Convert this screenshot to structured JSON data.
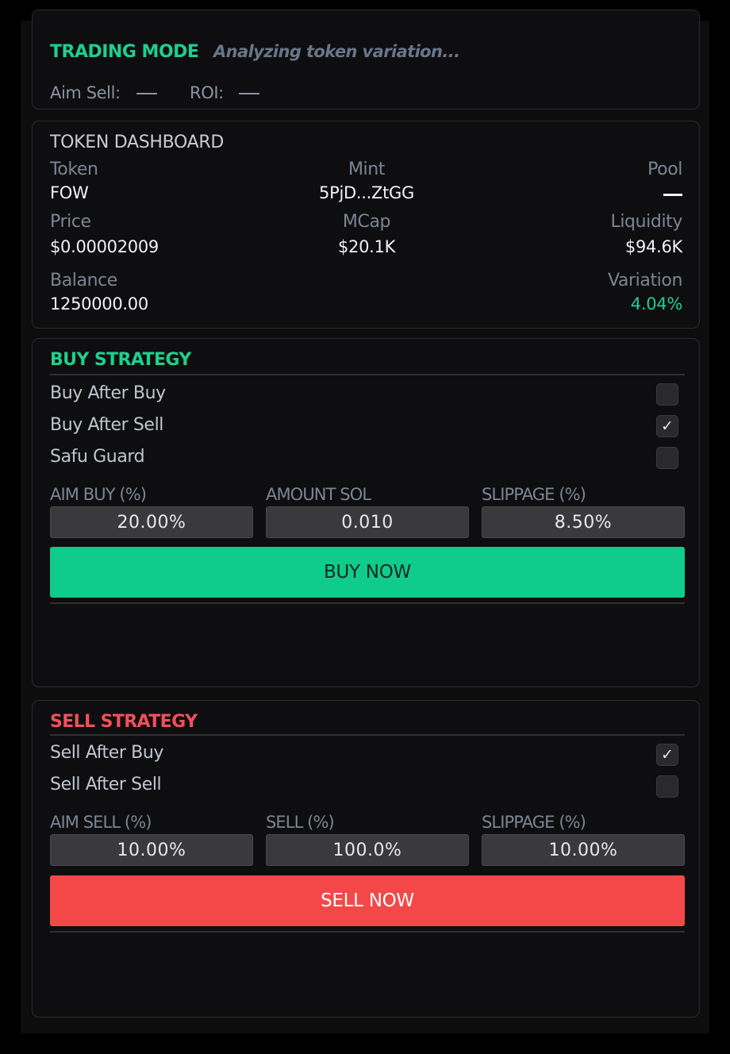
{
  "trading_mode": {
    "label": "TRADING MODE",
    "status": "Analyzing token variation...",
    "aim_sell_label": "Aim Sell:",
    "aim_sell_value": "—",
    "roi_label": "ROI:",
    "roi_value": "—"
  },
  "dashboard": {
    "title": "TOKEN DASHBOARD",
    "token_label": "Token",
    "token_value": "FOW",
    "mint_label": "Mint",
    "mint_value": "5PjD...ZtGG",
    "pool_label": "Pool",
    "pool_value": "—",
    "price_label": "Price",
    "price_value": "$0.00002009",
    "mcap_label": "MCap",
    "mcap_value": "$20.1K",
    "liquidity_label": "Liquidity",
    "liquidity_value": "$94.6K",
    "balance_label": "Balance",
    "balance_value": "1250000.00",
    "variation_label": "Variation",
    "variation_value": "4.04%"
  },
  "buy_strategy": {
    "title": "BUY STRATEGY",
    "options": [
      {
        "label": "Buy After Buy",
        "checked": false
      },
      {
        "label": "Buy After Sell",
        "checked": true
      },
      {
        "label": "Safu Guard",
        "checked": false
      }
    ],
    "aim_buy_label": "AIM BUY (%)",
    "aim_buy_value": "20.00%",
    "amount_label": "AMOUNT SOL",
    "amount_value": "0.010",
    "slippage_label": "SLIPPAGE (%)",
    "slippage_value": "8.50%",
    "button_label": "BUY NOW"
  },
  "sell_strategy": {
    "title": "SELL STRATEGY",
    "options": [
      {
        "label": "Sell After Buy",
        "checked": true
      },
      {
        "label": "Sell After Sell",
        "checked": false
      }
    ],
    "aim_sell_label": "AIM SELL (%)",
    "aim_sell_value": "10.00%",
    "sell_pct_label": "SELL (%)",
    "sell_pct_value": "100.0%",
    "slippage_label": "SLIPPAGE (%)",
    "slippage_value": "10.00%",
    "button_label": "SELL NOW"
  },
  "colors": {
    "accent_green": "#1fcf8f",
    "accent_red": "#f0505a",
    "buy_button": "#10cc8c",
    "sell_button": "#f44848",
    "background": "#0d0d0e"
  },
  "check_glyph": "✓"
}
